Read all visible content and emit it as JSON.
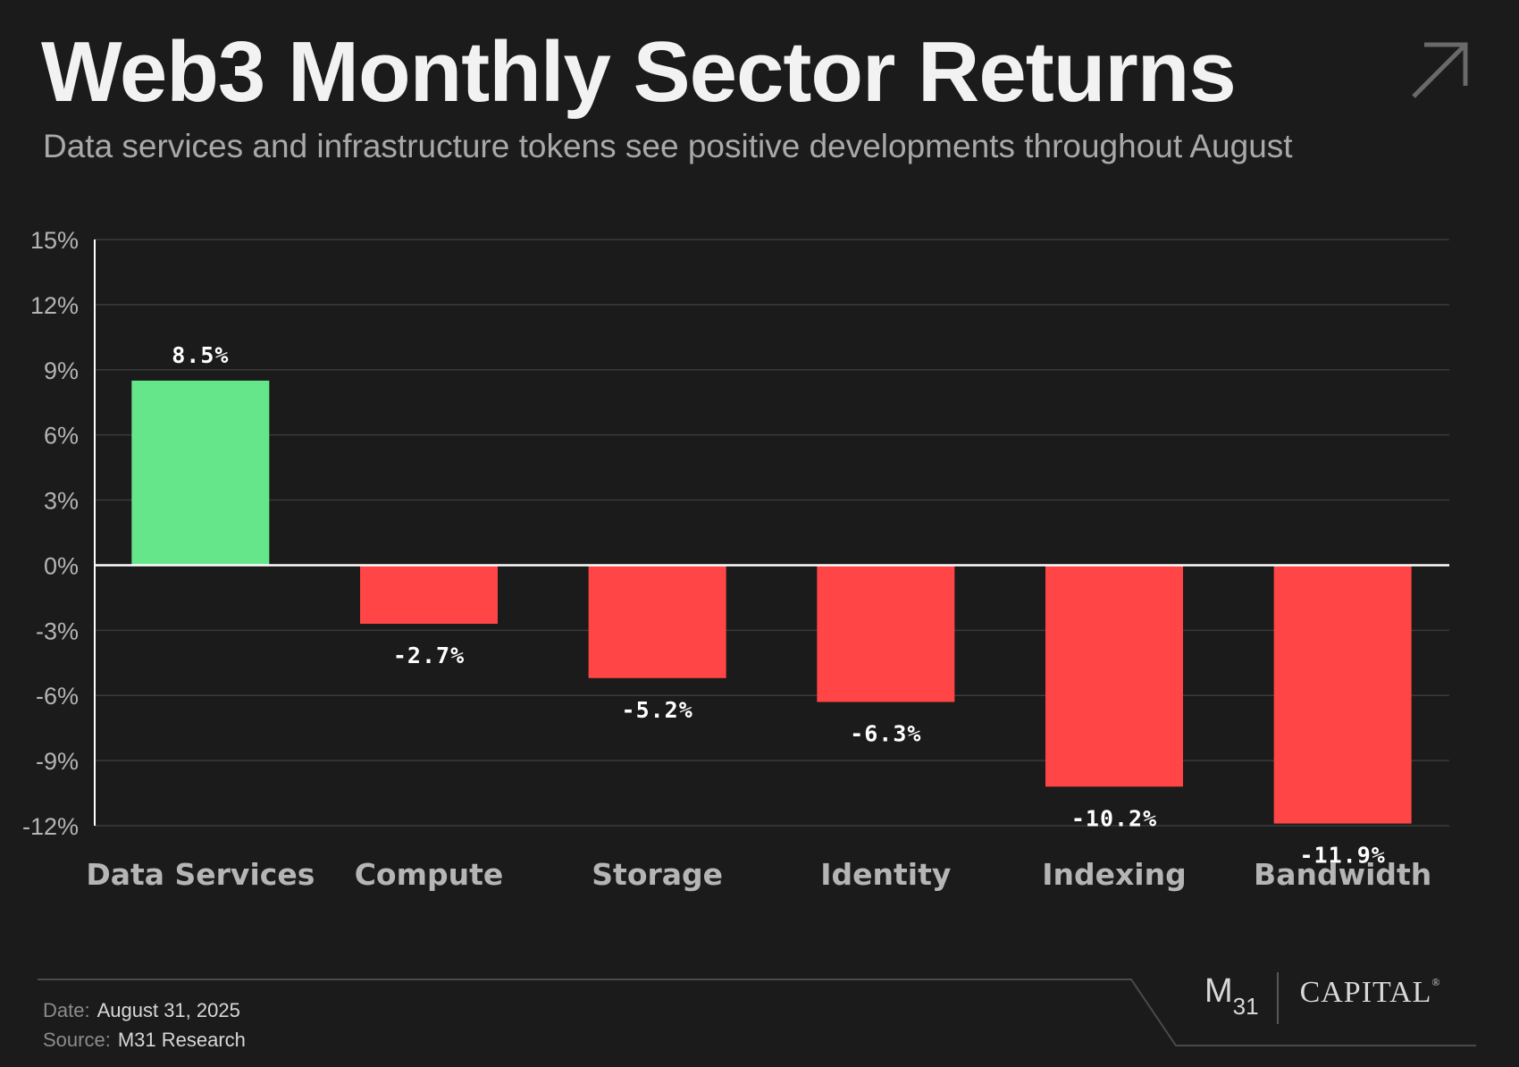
{
  "header": {
    "title": "Web3 Monthly Sector Returns",
    "subtitle": "Data services and infrastructure tokens see positive developments throughout August"
  },
  "icons": {
    "corner": "arrow-up-right-icon"
  },
  "chart_data": {
    "type": "bar",
    "title": "Web3 Monthly Sector Returns",
    "xlabel": "",
    "ylabel": "",
    "categories": [
      "Data Services",
      "Compute",
      "Storage",
      "Identity",
      "Indexing",
      "Bandwidth"
    ],
    "values": [
      8.5,
      -2.7,
      -5.2,
      -6.3,
      -10.2,
      -11.9
    ],
    "data_labels": [
      "8.5%",
      "-2.7%",
      "-5.2%",
      "-6.3%",
      "-10.2%",
      "-11.9%"
    ],
    "yticks": [
      15,
      12,
      9,
      6,
      3,
      0,
      -3,
      -6,
      -9,
      -12
    ],
    "ytick_labels": [
      "15%",
      "12%",
      "9%",
      "6%",
      "3%",
      "0%",
      "-3%",
      "-6%",
      "-9%",
      "-12%"
    ],
    "ylim": [
      -12,
      15
    ],
    "grid": true,
    "colors": {
      "positive": "#66e68b",
      "negative": "#ff4545"
    }
  },
  "footer": {
    "date_label": "Date:",
    "date_value": "August 31, 2025",
    "source_label": "Source:",
    "source_value": "M31 Research",
    "logo_m": "M",
    "logo_sub": "31",
    "logo_capital": "CAPITAL",
    "logo_reg": "®"
  },
  "colors": {
    "background": "#1b1b1b",
    "grid": "#3a3a3a",
    "axis": "#ffffff",
    "tick_text": "#b5b5b5"
  }
}
